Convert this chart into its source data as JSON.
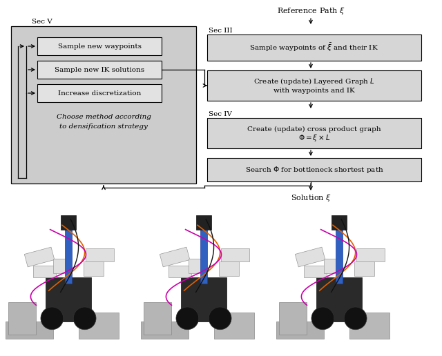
{
  "background_color": "#ffffff",
  "box_fill_color": "#d9d9d9",
  "box_edge_color": "#000000",
  "fig_width": 6.4,
  "fig_height": 5.16,
  "dpi": 100,
  "ref_path_text": "Reference Path $\\xi$",
  "solution_text": "Solution $\\xi$",
  "sec_iii_text": "Sec III",
  "sec_iv_text": "Sec IV",
  "sec_v_text": "Sec V",
  "box1_text": "Sample waypoints of $\\bar{\\xi}$ and their IK",
  "box2_line1": "Create (update) Layered Graph $L$",
  "box2_line2": "with waypoints and IK",
  "box3_line1": "Create (update) cross product graph",
  "box3_line2": "$\\Phi = \\xi \\times L$",
  "box4_text": "Search $\\Phi$ for bottleneck shortest path",
  "inner_box1_text": "Sample new waypoints",
  "inner_box2_text": "Sample new IK solutions",
  "inner_box3_text": "Increase discretization",
  "choose_line1": "Choose method according",
  "choose_line2": "to densification strategy"
}
